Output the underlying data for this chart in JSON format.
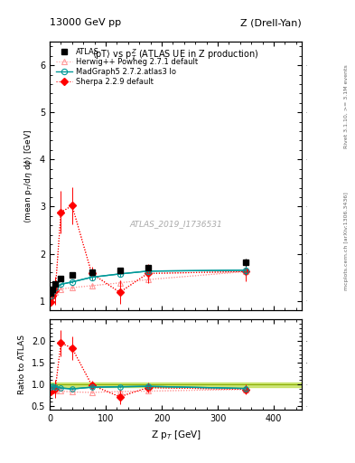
{
  "title_left": "13000 GeV pp",
  "title_right": "Z (Drell-Yan)",
  "plot_title": "<pT> vs p_{T}^{Z} (ATLAS UE in Z production)",
  "xlabel": "Z p_{T} [GeV]",
  "ylabel_main": "<mean p_{T}/d#eta d#phi> [GeV]",
  "ylabel_ratio": "Ratio to ATLAS",
  "watermark": "ATLAS_2019_I1736531",
  "right_label_top": "Rivet 3.1.10, >= 3.1M events",
  "right_label_bot": "mcplots.cern.ch [arXiv:1306.3436]",
  "atlas_x": [
    2,
    5,
    10,
    20,
    40,
    75,
    125,
    175,
    350
  ],
  "atlas_y": [
    1.17,
    1.25,
    1.35,
    1.47,
    1.55,
    1.6,
    1.65,
    1.7,
    1.82
  ],
  "atlas_yerr": [
    0.03,
    0.03,
    0.03,
    0.04,
    0.04,
    0.05,
    0.05,
    0.06,
    0.07
  ],
  "herwig_x": [
    2,
    5,
    10,
    20,
    40,
    75,
    125,
    175,
    350
  ],
  "herwig_y": [
    1.05,
    1.1,
    1.18,
    1.25,
    1.28,
    1.32,
    1.38,
    1.45,
    1.62
  ],
  "herwig_yerr": [
    0.02,
    0.02,
    0.02,
    0.03,
    0.03,
    0.03,
    0.04,
    0.05,
    0.08
  ],
  "madgraph_x": [
    2,
    5,
    10,
    20,
    40,
    75,
    125,
    175,
    350
  ],
  "madgraph_y": [
    1.1,
    1.2,
    1.28,
    1.35,
    1.4,
    1.5,
    1.57,
    1.63,
    1.65
  ],
  "madgraph_yerr": [
    0.02,
    0.02,
    0.02,
    0.03,
    0.03,
    0.04,
    0.05,
    0.05,
    0.1
  ],
  "sherpa_x": [
    2,
    5,
    10,
    20,
    40,
    75,
    125,
    175,
    350
  ],
  "sherpa_y": [
    0.98,
    1.1,
    1.22,
    2.88,
    3.02,
    1.58,
    1.18,
    1.58,
    1.62
  ],
  "sherpa_yerr": [
    0.05,
    0.05,
    0.3,
    0.45,
    0.4,
    0.15,
    0.25,
    0.2,
    0.2
  ],
  "herwig_ratio_y": [
    0.9,
    0.88,
    0.87,
    0.85,
    0.83,
    0.82,
    0.84,
    0.85,
    0.89
  ],
  "madgraph_ratio_y": [
    0.94,
    0.96,
    0.95,
    0.92,
    0.9,
    0.94,
    0.95,
    0.96,
    0.91
  ],
  "sherpa_ratio_y": [
    0.84,
    0.88,
    0.9,
    1.96,
    1.84,
    0.99,
    0.72,
    0.93,
    0.89
  ],
  "herwig_ratio_yerr": [
    0.02,
    0.02,
    0.02,
    0.02,
    0.02,
    0.02,
    0.03,
    0.03,
    0.05
  ],
  "madgraph_ratio_yerr": [
    0.02,
    0.02,
    0.02,
    0.02,
    0.02,
    0.03,
    0.03,
    0.03,
    0.06
  ],
  "sherpa_ratio_yerr": [
    0.04,
    0.04,
    0.2,
    0.3,
    0.28,
    0.1,
    0.17,
    0.12,
    0.12
  ],
  "atlas_band_low": 0.95,
  "atlas_band_high": 1.05,
  "color_atlas": "#000000",
  "color_herwig": "#ff9999",
  "color_madgraph": "#009999",
  "color_sherpa": "#ff0000",
  "xlim": [
    0,
    450
  ],
  "ylim_main": [
    0.8,
    6.5
  ],
  "ylim_ratio": [
    0.42,
    2.5
  ],
  "yticks_main": [
    1,
    2,
    3,
    4,
    5,
    6
  ],
  "yticks_ratio": [
    0.5,
    1.0,
    1.5,
    2.0
  ],
  "xticks": [
    0,
    100,
    200,
    300,
    400
  ]
}
